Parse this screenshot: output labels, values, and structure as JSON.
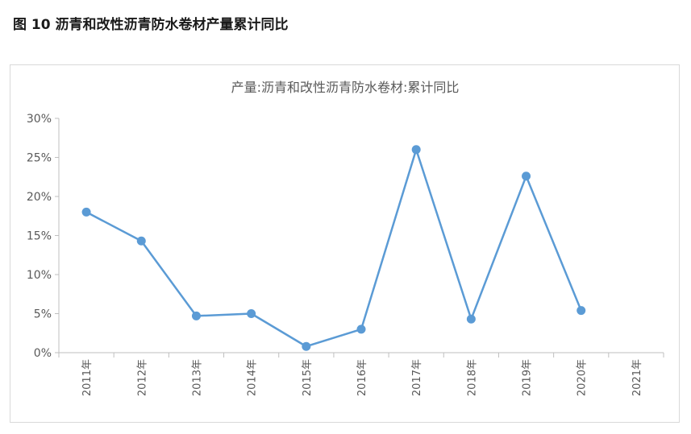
{
  "figure_caption": "图 10 沥青和改性沥青防水卷材产量累计同比",
  "chart_data": {
    "type": "line",
    "title": "产量:沥青和改性沥青防水卷材:累计同比",
    "categories": [
      "2011年",
      "2012年",
      "2013年",
      "2014年",
      "2015年",
      "2016年",
      "2017年",
      "2018年",
      "2019年",
      "2020年",
      "2021年"
    ],
    "series": [
      {
        "values": [
          18.0,
          14.3,
          4.7,
          5.0,
          0.8,
          3.0,
          26.0,
          4.3,
          22.6,
          5.4,
          null
        ]
      }
    ],
    "y_ticks": [
      "0%",
      "5%",
      "10%",
      "15%",
      "20%",
      "25%",
      "30%"
    ],
    "ylim": [
      0,
      30
    ],
    "grid": false,
    "legend": "none",
    "colors": {
      "line": "#5b9bd5",
      "axis": "#bfbfbf",
      "text": "#595959"
    }
  }
}
